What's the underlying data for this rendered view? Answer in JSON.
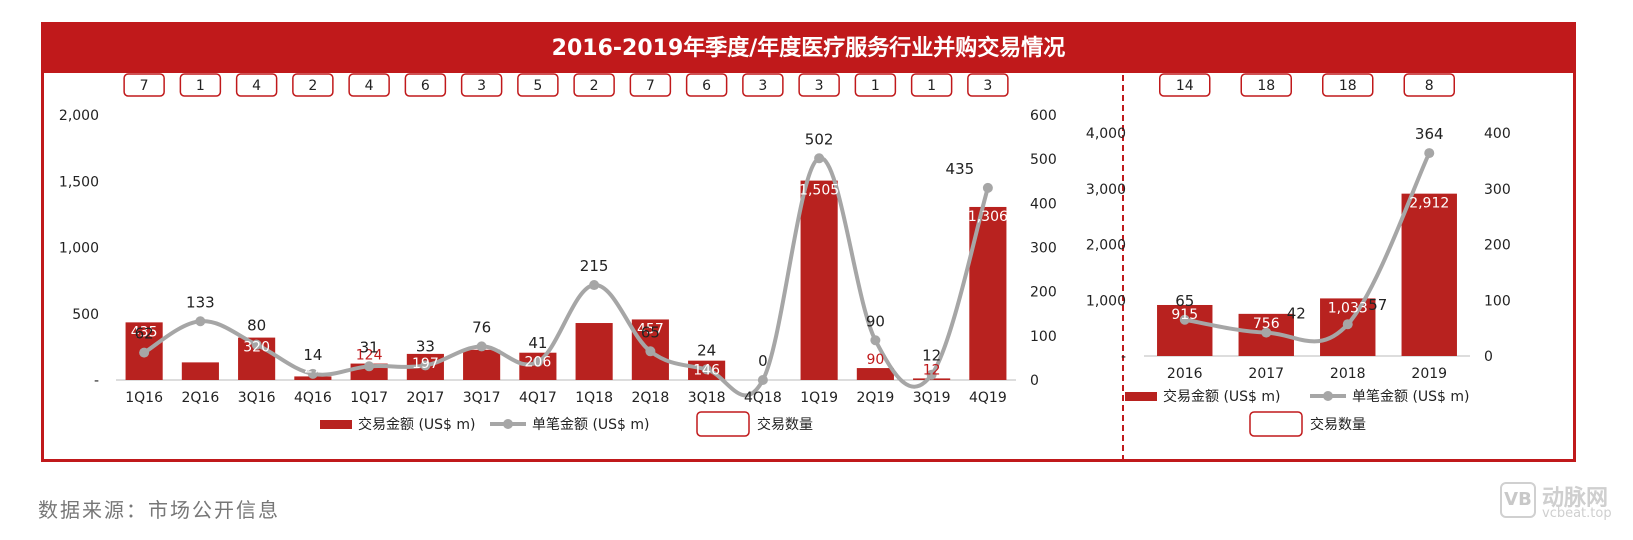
{
  "title": "2016-2019年季度/年度医疗服务行业并购交易情况",
  "source": "数据来源：市场公开信息",
  "watermark": {
    "logo": "VB",
    "name": "动脉网",
    "url": "vcbeat.top"
  },
  "colors": {
    "bar": "#b8221f",
    "line": "#a6a6a6",
    "frame": "#c0191b"
  },
  "chart_data": [
    {
      "type": "bar",
      "categories": [
        "1Q16",
        "2Q16",
        "3Q16",
        "4Q16",
        "1Q17",
        "2Q17",
        "3Q17",
        "4Q17",
        "1Q18",
        "2Q18",
        "3Q18",
        "4Q18",
        "1Q19",
        "2Q19",
        "3Q19",
        "4Q19"
      ],
      "series": [
        {
          "name": "交易金额 (US$ m)",
          "type": "bar",
          "axis": "left",
          "values": [
            435,
            133,
            320,
            27,
            124,
            197,
            null,
            206,
            null,
            457,
            146,
            null,
            1505,
            90,
            12,
            1306
          ],
          "labels": [
            "435",
            "133",
            "320",
            "27",
            "124",
            "197",
            "",
            "206",
            "",
            "457",
            "146",
            "",
            "1,505",
            "90",
            "12",
            "1,306"
          ]
        },
        {
          "name": "单笔金额 (US$ m)",
          "type": "line",
          "axis": "right",
          "values": [
            62,
            133,
            80,
            14,
            31,
            33,
            76,
            41,
            215,
            65,
            24,
            0,
            502,
            90,
            12,
            435
          ]
        },
        {
          "name": "交易数量",
          "type": "table",
          "values": [
            "7",
            "1",
            "4",
            "2",
            "4",
            "6",
            "3",
            "5",
            "2",
            "7",
            "6",
            "3",
            "3",
            "1",
            "1",
            "3"
          ]
        }
      ],
      "bar_values_estimated": [
        435,
        133,
        320,
        27,
        124,
        197,
        228,
        206,
        430,
        457,
        146,
        0,
        1505,
        90,
        12,
        1306
      ],
      "red_labels": [
        4,
        13,
        14
      ],
      "ylim_left": [
        0,
        2000
      ],
      "yticks_left": [
        "-",
        "500",
        "1,000",
        "1,500",
        "2,000"
      ],
      "ylim_right": [
        0,
        600
      ],
      "yticks_right": [
        "0",
        "100",
        "200",
        "300",
        "400",
        "500",
        "600"
      ],
      "legend": [
        "交易金额 (US$ m)",
        "单笔金额 (US$ m)",
        "交易数量"
      ]
    },
    {
      "type": "bar",
      "categories": [
        "2016",
        "2017",
        "2018",
        "2019"
      ],
      "series": [
        {
          "name": "交易金额 (US$ m)",
          "type": "bar",
          "axis": "left",
          "values": [
            915,
            756,
            1033,
            2912
          ],
          "labels": [
            "915",
            "756",
            "1,033",
            "2,912"
          ]
        },
        {
          "name": "单笔金额 (US$ m)",
          "type": "line",
          "axis": "right",
          "values": [
            65,
            42,
            57,
            364
          ]
        },
        {
          "name": "交易数量",
          "type": "table",
          "values": [
            "14",
            "18",
            "18",
            "8"
          ]
        }
      ],
      "ylim_left": [
        0,
        4000
      ],
      "yticks_left": [
        "-",
        "1,000",
        "2,000",
        "3,000",
        "4,000"
      ],
      "ylim_right": [
        0,
        400
      ],
      "yticks_right": [
        "0",
        "100",
        "200",
        "300",
        "400"
      ],
      "legend": [
        "交易金额 (US$ m)",
        "单笔金额 (US$ m)",
        "交易数量"
      ]
    }
  ]
}
